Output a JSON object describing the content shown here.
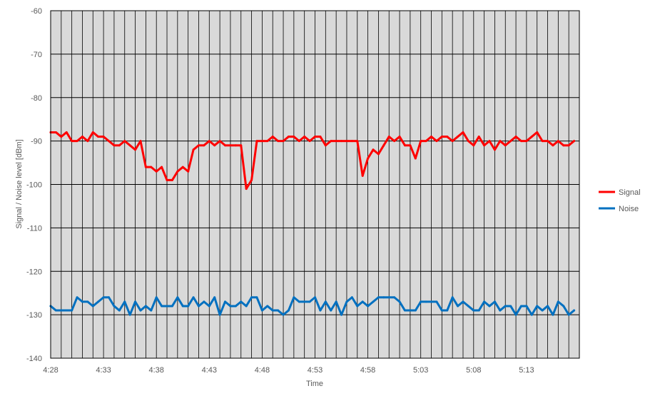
{
  "chart_data": {
    "type": "line",
    "xlabel": "Time",
    "ylabel": "Signal / Noise level [dBm]",
    "ylim": [
      -140,
      -60
    ],
    "yticks": [
      -60,
      -70,
      -80,
      -90,
      -100,
      -110,
      -120,
      -130,
      -140
    ],
    "ytick_labels": [
      "-60",
      "-70",
      "-80",
      "-90",
      "-100",
      "-110",
      "-120",
      "-130",
      "-140"
    ],
    "xticks": [
      "4:28",
      "4:33",
      "4:38",
      "4:43",
      "4:48",
      "4:53",
      "4:58",
      "5:03",
      "5:08",
      "5:13"
    ],
    "x_minutes_per_tick": 5,
    "x_samples_per_minute": 2,
    "grid": true,
    "plot_background": "#d9d9d9",
    "legend_position": "right",
    "series": [
      {
        "name": "Signal",
        "color": "#ff0000",
        "values": [
          -88,
          -88,
          -89,
          -88,
          -90,
          -90,
          -89,
          -90,
          -88,
          -89,
          -89,
          -90,
          -91,
          -91,
          -90,
          -91,
          -92,
          -90,
          -96,
          -96,
          -97,
          -96,
          -99,
          -99,
          -97,
          -96,
          -97,
          -92,
          -91,
          -91,
          -90,
          -91,
          -90,
          -91,
          -91,
          -91,
          -91,
          -101,
          -99,
          -90,
          -90,
          -90,
          -89,
          -90,
          -90,
          -89,
          -89,
          -90,
          -89,
          -90,
          -89,
          -89,
          -91,
          -90,
          -90,
          -90,
          -90,
          -90,
          -90,
          -98,
          -94,
          -92,
          -93,
          -91,
          -89,
          -90,
          -89,
          -91,
          -91,
          -94,
          -90,
          -90,
          -89,
          -90,
          -89,
          -89,
          -90,
          -89,
          -88,
          -90,
          -91,
          -89,
          -91,
          -90,
          -92,
          -90,
          -91,
          -90,
          -89,
          -90,
          -90,
          -89,
          -88,
          -90,
          -90,
          -91,
          -90,
          -91,
          -91,
          -90
        ]
      },
      {
        "name": "Noise",
        "color": "#0070c0",
        "values": [
          -128,
          -129,
          -129,
          -129,
          -129,
          -126,
          -127,
          -127,
          -128,
          -127,
          -126,
          -126,
          -128,
          -129,
          -127,
          -130,
          -127,
          -129,
          -128,
          -129,
          -126,
          -128,
          -128,
          -128,
          -126,
          -128,
          -128,
          -126,
          -128,
          -127,
          -128,
          -126,
          -130,
          -127,
          -128,
          -128,
          -127,
          -128,
          -126,
          -126,
          -129,
          -128,
          -129,
          -129,
          -130,
          -129,
          -126,
          -127,
          -127,
          -127,
          -126,
          -129,
          -127,
          -129,
          -127,
          -130,
          -127,
          -126,
          -128,
          -127,
          -128,
          -127,
          -126,
          -126,
          -126,
          -126,
          -127,
          -129,
          -129,
          -129,
          -127,
          -127,
          -127,
          -127,
          -129,
          -129,
          -126,
          -128,
          -127,
          -128,
          -129,
          -129,
          -127,
          -128,
          -127,
          -129,
          -128,
          -128,
          -130,
          -128,
          -128,
          -130,
          -128,
          -129,
          -128,
          -130,
          -127,
          -128,
          -130,
          -129
        ]
      }
    ]
  }
}
